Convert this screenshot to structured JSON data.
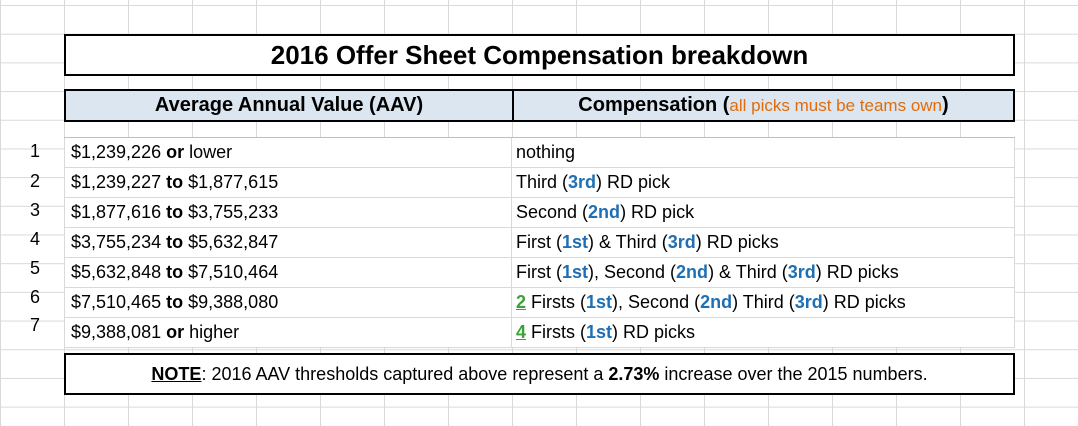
{
  "title": "2016 Offer Sheet Compensation breakdown",
  "header": {
    "aav_label": "Average Annual Value (AAV)",
    "comp_label": "Compensation",
    "comp_note": "all picks must be teams own"
  },
  "rows": [
    {
      "num": "1",
      "aav_low": "$1,239,226",
      "aav_sep": "or",
      "aav_high": "lower"
    },
    {
      "num": "2",
      "aav_low": "$1,239,227",
      "aav_sep": "to",
      "aav_high": "$1,877,615"
    },
    {
      "num": "3",
      "aav_low": "$1,877,616",
      "aav_sep": "to",
      "aav_high": "$3,755,233"
    },
    {
      "num": "4",
      "aav_low": "$3,755,234",
      "aav_sep": "to",
      "aav_high": "$5,632,847"
    },
    {
      "num": "5",
      "aav_low": "$5,632,848",
      "aav_sep": "to",
      "aav_high": "$7,510,464"
    },
    {
      "num": "6",
      "aav_low": "$7,510,465",
      "aav_sep": "to",
      "aav_high": "$9,388,080"
    },
    {
      "num": "7",
      "aav_low": "$9,388,081",
      "aav_sep": "or",
      "aav_high": "higher"
    }
  ],
  "comp": {
    "r1": {
      "text": "nothing"
    },
    "r2": {
      "a": "Third (",
      "b": "3rd",
      "c": ") RD pick"
    },
    "r3": {
      "a": "Second (",
      "b": "2nd",
      "c": ") RD pick"
    },
    "r4": {
      "a": "First (",
      "b": "1st",
      "c": ") & Third (",
      "d": "3rd",
      "e": ") RD picks"
    },
    "r5": {
      "a": "First (",
      "b": "1st",
      "c": "), Second (",
      "d": "2nd",
      "e": ") & Third (",
      "f": "3rd",
      "g": ") RD picks"
    },
    "r6": {
      "n": "2",
      "a": " Firsts (",
      "b": "1st",
      "c": "), Second (",
      "d": "2nd",
      "e": ") Third (",
      "f": "3rd",
      "g": ") RD picks"
    },
    "r7": {
      "n": "4",
      "a": " Firsts (",
      "b": "1st",
      "c": ") RD picks"
    }
  },
  "note": {
    "label": "NOTE",
    "text_a": ": 2016 AAV thresholds captured above represent a ",
    "pct": "2.73%",
    "text_b": " increase over the 2015 numbers."
  },
  "colors": {
    "accent_blue": "#1f6fb4",
    "accent_green": "#3aa335",
    "accent_orange": "#e26b0a",
    "header_bg": "#dce6f1"
  }
}
